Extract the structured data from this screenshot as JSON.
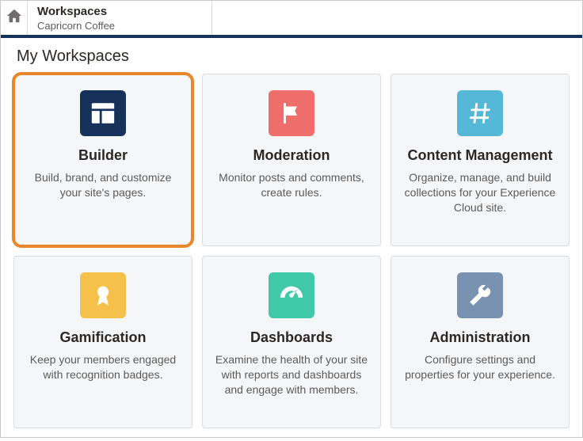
{
  "header": {
    "title": "Workspaces",
    "subtitle": "Capricorn Coffee"
  },
  "section_title": "My Workspaces",
  "colors": {
    "accent_border": "#e8862c",
    "header_rule": "#16315a"
  },
  "cards": [
    {
      "id": "builder",
      "title": "Builder",
      "desc": "Build, brand, and customize your site's pages.",
      "icon_bg": "#16315a",
      "highlight": true,
      "icon": "layout"
    },
    {
      "id": "moderation",
      "title": "Moderation",
      "desc": "Monitor posts and comments, create rules.",
      "icon_bg": "#ef6e6b",
      "highlight": false,
      "icon": "flag"
    },
    {
      "id": "content-management",
      "title": "Content Management",
      "desc": "Organize, manage, and build collections for your Experience Cloud site.",
      "icon_bg": "#54b8d6",
      "highlight": false,
      "icon": "hash"
    },
    {
      "id": "gamification",
      "title": "Gamification",
      "desc": "Keep your members engaged with recognition badges.",
      "icon_bg": "#f5c14b",
      "highlight": false,
      "icon": "award"
    },
    {
      "id": "dashboards",
      "title": "Dashboards",
      "desc": "Examine the health of your site with reports and dashboards and engage with members.",
      "icon_bg": "#3fc9a9",
      "highlight": false,
      "icon": "gauge"
    },
    {
      "id": "administration",
      "title": "Administration",
      "desc": "Configure settings and properties for your experience.",
      "icon_bg": "#7a92b1",
      "highlight": false,
      "icon": "wrench"
    }
  ]
}
